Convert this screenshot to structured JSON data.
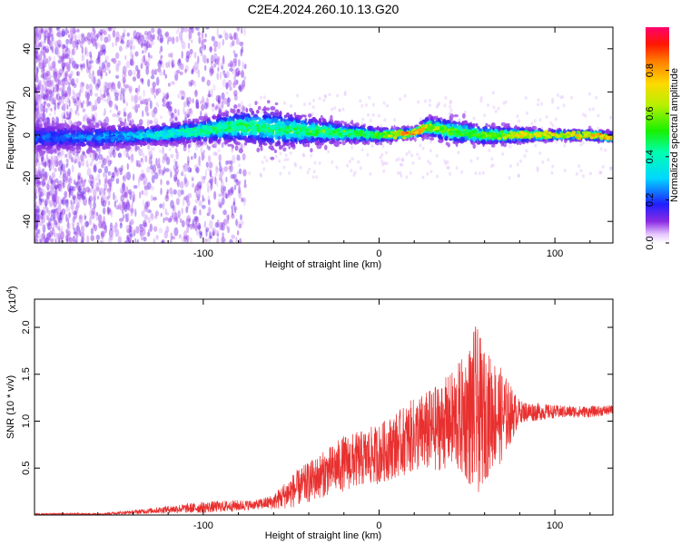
{
  "figure_title": "C2E4.2024.260.10.13.G20",
  "chart_data": [
    {
      "type": "heatmap",
      "title": "C2E4.2024.260.10.13.G20",
      "xlabel": "Height of straight line (km)",
      "ylabel": "Frequency (Hz)",
      "xlim": [
        -196,
        133
      ],
      "ylim": [
        -50,
        50
      ],
      "xticks": [
        -100,
        0,
        100
      ],
      "yticks": [
        -40,
        -20,
        0,
        20,
        40
      ],
      "colorbar": {
        "label": "Normalized spectral amplitude",
        "range": [
          0,
          1
        ],
        "ticks": [
          "0.0",
          "0.2",
          "0.4",
          "0.6",
          "0.8"
        ]
      },
      "ridge": {
        "description_values": "dominant energy band centered near 0 Hz",
        "x": [
          -196,
          -160,
          -130,
          -100,
          -80,
          -60,
          -40,
          -20,
          0,
          20,
          27,
          40,
          60,
          80,
          100,
          120,
          133
        ],
        "center_hz": [
          -1,
          -1,
          0,
          2,
          4,
          3,
          2,
          1,
          0,
          1,
          4,
          2,
          0,
          0,
          0,
          0,
          -1
        ],
        "halfwidth_hz": [
          6,
          5,
          4,
          5,
          7,
          8,
          6,
          4,
          3,
          2,
          4,
          5,
          4,
          3,
          2,
          2,
          2
        ],
        "peak_amplitude": [
          0.15,
          0.2,
          0.35,
          0.45,
          0.5,
          0.45,
          0.5,
          0.5,
          0.55,
          0.95,
          0.7,
          0.6,
          0.55,
          0.75,
          0.7,
          0.8,
          0.9
        ]
      }
    },
    {
      "type": "line",
      "xlabel": "Height of straight line (km)",
      "ylabel": "SNR (10 * v/v)",
      "y_multiplier": "(x10^4)",
      "xlim": [
        -196,
        133
      ],
      "ylim": [
        0,
        2.3
      ],
      "xticks": [
        -100,
        0,
        100
      ],
      "yticks": [
        0.5,
        1.0,
        1.5,
        2.0
      ],
      "color": "#e8302f",
      "envelope": {
        "x": [
          -196,
          -160,
          -140,
          -120,
          -100,
          -80,
          -70,
          -60,
          -50,
          -40,
          -30,
          -20,
          -10,
          0,
          10,
          20,
          30,
          40,
          50,
          55,
          60,
          65,
          70,
          80,
          100,
          120,
          133
        ],
        "mean": [
          0.01,
          0.01,
          0.03,
          0.06,
          0.08,
          0.1,
          0.11,
          0.14,
          0.25,
          0.35,
          0.45,
          0.55,
          0.6,
          0.65,
          0.75,
          0.85,
          0.9,
          1.0,
          1.05,
          1.1,
          1.05,
          1.1,
          1.05,
          1.1,
          1.1,
          1.1,
          1.12
        ],
        "amp": [
          0.01,
          0.01,
          0.02,
          0.04,
          0.06,
          0.06,
          0.05,
          0.08,
          0.18,
          0.22,
          0.25,
          0.3,
          0.3,
          0.32,
          0.35,
          0.4,
          0.45,
          0.5,
          0.7,
          0.95,
          0.7,
          0.6,
          0.5,
          0.12,
          0.07,
          0.06,
          0.05
        ]
      }
    }
  ]
}
